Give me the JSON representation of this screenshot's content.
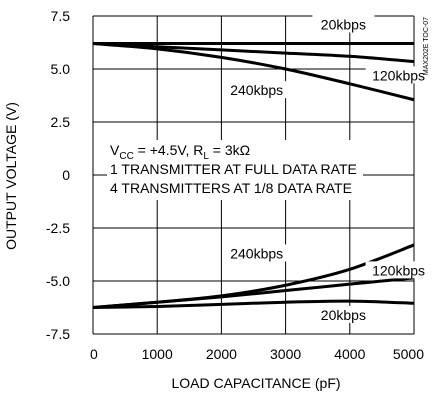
{
  "chart_data": {
    "type": "line",
    "xlabel": "LOAD CAPACITANCE (pF)",
    "ylabel": "OUTPUT VOLTAGE (V)",
    "xlim": [
      0,
      5000
    ],
    "ylim": [
      -7.5,
      7.5
    ],
    "grid": true,
    "x_ticks": [
      "0",
      "1000",
      "2000",
      "3000",
      "4000",
      "5000"
    ],
    "y_ticks": [
      "7.5",
      "5.0",
      "2.5",
      "0",
      "-2.5",
      "-5.0",
      "-7.5"
    ],
    "annotation": {
      "line1_vcc_main": "V",
      "line1_vcc_sub": "CC",
      "line1_mid": " = +4.5V, R",
      "line1_rl_sub": "L",
      "line1_end": " = 3kΩ",
      "line2": "1 TRANSMITTER AT FULL DATA RATE",
      "line3": "4 TRANSMITTERS AT 1/8 DATA RATE"
    },
    "side_id": "MAX202E TOC-07",
    "series": [
      {
        "name": "20kbps",
        "x": [
          0,
          1000,
          2000,
          3000,
          4000,
          5000
        ],
        "values": [
          6.2,
          6.2,
          6.2,
          6.2,
          6.2,
          6.2
        ]
      },
      {
        "name": "120kbps",
        "x": [
          0,
          1000,
          2000,
          3000,
          4000,
          5000
        ],
        "values": [
          6.2,
          6.05,
          5.9,
          5.75,
          5.6,
          5.35
        ]
      },
      {
        "name": "240kbps",
        "x": [
          0,
          1000,
          2000,
          3000,
          4000,
          5000
        ],
        "values": [
          6.2,
          5.95,
          5.55,
          5.0,
          4.3,
          3.55
        ]
      },
      {
        "name": "240kbps",
        "x": [
          0,
          1000,
          2000,
          3000,
          4000,
          5000
        ],
        "values": [
          -6.25,
          -6.0,
          -5.7,
          -5.2,
          -4.45,
          -3.3
        ]
      },
      {
        "name": "120kbps",
        "x": [
          0,
          1000,
          2000,
          3000,
          4000,
          5000
        ],
        "values": [
          -6.25,
          -6.0,
          -5.75,
          -5.45,
          -5.15,
          -4.85
        ]
      },
      {
        "name": "20kbps",
        "x": [
          0,
          1000,
          2000,
          3000,
          4000,
          5000
        ],
        "values": [
          -6.25,
          -6.2,
          -6.1,
          -6.0,
          -5.95,
          -6.05
        ]
      }
    ]
  }
}
